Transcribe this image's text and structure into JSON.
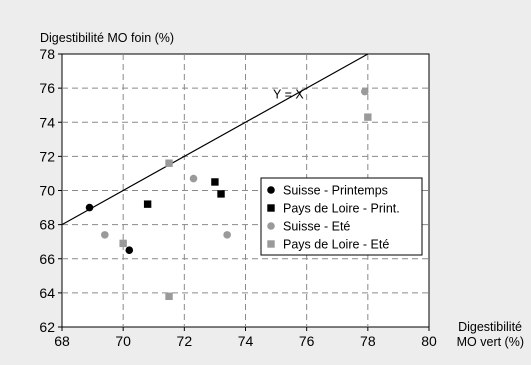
{
  "chart_data": {
    "type": "scatter",
    "ylabel": "Digestibilité MO foin (%)",
    "xlabel_line1": "Digestibilité",
    "xlabel_line2": "MO vert (%)",
    "xlim": [
      68,
      80
    ],
    "ylim": [
      62,
      78
    ],
    "xticks": [
      68,
      70,
      72,
      74,
      76,
      78,
      80
    ],
    "yticks": [
      62,
      64,
      66,
      68,
      70,
      72,
      74,
      76,
      78
    ],
    "grid": true,
    "legend_position": "right",
    "reference_line": {
      "label": "Y = X",
      "from": [
        68,
        68
      ],
      "to": [
        78,
        78
      ]
    },
    "series": [
      {
        "name": "Suisse - Printemps",
        "marker": "circle",
        "color": "#000000",
        "points": [
          [
            68.9,
            69.0
          ],
          [
            70.2,
            66.5
          ]
        ]
      },
      {
        "name": "Pays de Loire - Print.",
        "marker": "square",
        "color": "#000000",
        "points": [
          [
            70.8,
            69.2
          ],
          [
            73.0,
            70.5
          ],
          [
            73.2,
            69.8
          ]
        ]
      },
      {
        "name": "Suisse - Eté",
        "marker": "circle",
        "color": "#9a9a9a",
        "points": [
          [
            69.4,
            67.4
          ],
          [
            72.3,
            70.7
          ],
          [
            73.4,
            67.4
          ],
          [
            77.9,
            75.8
          ]
        ]
      },
      {
        "name": "Pays de Loire - Eté",
        "marker": "square",
        "color": "#9a9a9a",
        "points": [
          [
            70.0,
            66.9
          ],
          [
            71.5,
            71.6
          ],
          [
            71.5,
            63.8
          ],
          [
            78.0,
            74.3
          ]
        ]
      }
    ]
  }
}
